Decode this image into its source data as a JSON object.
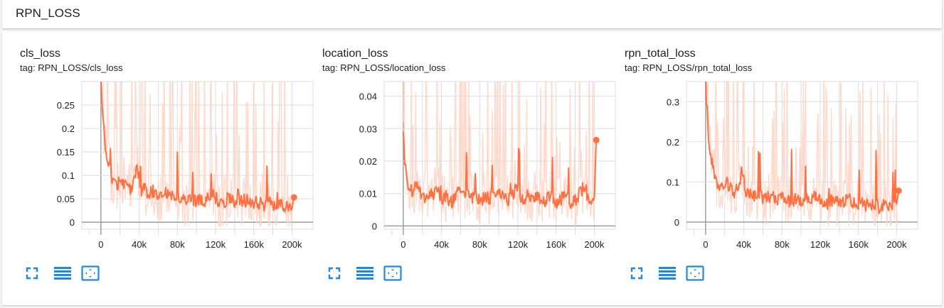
{
  "group": {
    "title": "RPN_LOSS"
  },
  "toolbar": {
    "fullscreen_icon": "fullscreen-icon",
    "log_scale_icon": "log-scale-icon",
    "fit_domain_icon": "fit-domain-icon"
  },
  "colors": {
    "line": "#ff7043",
    "smoothed_bg": "#ffd2c2",
    "accent": "#1e88e5",
    "grid": "#dddddd"
  },
  "charts": [
    {
      "title": "cls_loss",
      "tag": "tag: RPN_LOSS/cls_loss"
    },
    {
      "title": "location_loss",
      "tag": "tag: RPN_LOSS/location_loss"
    },
    {
      "title": "rpn_total_loss",
      "tag": "tag: RPN_LOSS/rpn_total_loss"
    }
  ],
  "chart_data": [
    {
      "type": "line",
      "title": "cls_loss",
      "xlabel": "",
      "ylabel": "",
      "xlim": [
        -20000,
        222000
      ],
      "ylim": [
        -0.015,
        0.3
      ],
      "xticks": [
        0,
        40000,
        80000,
        120000,
        160000,
        200000
      ],
      "xtick_labels": [
        "0",
        "40k",
        "80k",
        "120k",
        "160k",
        "200k"
      ],
      "yticks": [
        0,
        0.05,
        0.1,
        0.15,
        0.2,
        0.25
      ],
      "ytick_labels": [
        "0",
        "0.05",
        "0.1",
        "0.15",
        "0.2",
        "0.25"
      ],
      "grid": true,
      "series": [
        {
          "x": [
            0,
            2000,
            4000,
            6000,
            8000,
            10000,
            14000,
            18000,
            22000,
            26000,
            30000,
            34000,
            38000,
            42000,
            46000,
            50000,
            56000,
            62000,
            68000,
            74000,
            80000,
            86000,
            92000,
            98000,
            104000,
            110000,
            116000,
            122000,
            128000,
            134000,
            140000,
            146000,
            152000,
            158000,
            164000,
            170000,
            176000,
            182000,
            188000,
            194000,
            200000,
            202000
          ],
          "values": [
            0.3,
            0.22,
            0.17,
            0.14,
            0.12,
            0.1,
            0.085,
            0.08,
            0.09,
            0.075,
            0.07,
            0.08,
            0.12,
            0.065,
            0.07,
            0.06,
            0.065,
            0.05,
            0.06,
            0.05,
            0.055,
            0.045,
            0.05,
            0.045,
            0.05,
            0.045,
            0.06,
            0.045,
            0.04,
            0.05,
            0.04,
            0.045,
            0.045,
            0.04,
            0.04,
            0.035,
            0.04,
            0.03,
            0.04,
            0.03,
            0.035,
            0.053
          ]
        }
      ]
    },
    {
      "type": "line",
      "title": "location_loss",
      "xlabel": "",
      "ylabel": "",
      "xlim": [
        -20000,
        222000
      ],
      "ylim": [
        -0.001,
        0.0445
      ],
      "xticks": [
        0,
        40000,
        80000,
        120000,
        160000,
        200000
      ],
      "xtick_labels": [
        "0",
        "40k",
        "80k",
        "120k",
        "160k",
        "200k"
      ],
      "yticks": [
        0,
        0.01,
        0.02,
        0.03,
        0.04
      ],
      "ytick_labels": [
        "0",
        "0.01",
        "0.02",
        "0.03",
        "0.04"
      ],
      "grid": true,
      "series": [
        {
          "x": [
            0,
            3000,
            6000,
            10000,
            15000,
            20000,
            25000,
            30000,
            35000,
            40000,
            45000,
            50000,
            55000,
            60000,
            65000,
            70000,
            75000,
            80000,
            85000,
            90000,
            95000,
            100000,
            105000,
            110000,
            115000,
            120000,
            125000,
            130000,
            135000,
            140000,
            145000,
            150000,
            155000,
            160000,
            165000,
            170000,
            175000,
            180000,
            185000,
            190000,
            195000,
            200000,
            202000
          ],
          "values": [
            0.025,
            0.015,
            0.01,
            0.011,
            0.012,
            0.008,
            0.01,
            0.009,
            0.012,
            0.008,
            0.009,
            0.007,
            0.009,
            0.012,
            0.01,
            0.008,
            0.01,
            0.007,
            0.009,
            0.008,
            0.01,
            0.011,
            0.009,
            0.008,
            0.01,
            0.012,
            0.007,
            0.009,
            0.008,
            0.01,
            0.007,
            0.008,
            0.009,
            0.007,
            0.008,
            0.01,
            0.007,
            0.008,
            0.01,
            0.012,
            0.007,
            0.008,
            0.0265
          ]
        }
      ]
    },
    {
      "type": "line",
      "title": "rpn_total_loss",
      "xlabel": "",
      "ylabel": "",
      "xlim": [
        -20000,
        222000
      ],
      "ylim": [
        -0.018,
        0.35
      ],
      "xticks": [
        0,
        40000,
        80000,
        120000,
        160000,
        200000
      ],
      "xtick_labels": [
        "0",
        "40k",
        "80k",
        "120k",
        "160k",
        "200k"
      ],
      "yticks": [
        0,
        0.1,
        0.2,
        0.3
      ],
      "ytick_labels": [
        "0",
        "0.1",
        "0.2",
        "0.3"
      ],
      "grid": true,
      "series": [
        {
          "x": [
            0,
            2000,
            4000,
            6000,
            8000,
            10000,
            14000,
            18000,
            22000,
            26000,
            30000,
            34000,
            38000,
            42000,
            46000,
            50000,
            56000,
            62000,
            68000,
            74000,
            80000,
            86000,
            92000,
            98000,
            104000,
            110000,
            116000,
            122000,
            128000,
            134000,
            140000,
            146000,
            152000,
            158000,
            164000,
            170000,
            176000,
            182000,
            188000,
            194000,
            200000,
            202000
          ],
          "values": [
            0.35,
            0.25,
            0.19,
            0.15,
            0.13,
            0.11,
            0.09,
            0.085,
            0.095,
            0.08,
            0.075,
            0.085,
            0.13,
            0.07,
            0.075,
            0.065,
            0.07,
            0.055,
            0.065,
            0.055,
            0.06,
            0.05,
            0.055,
            0.05,
            0.055,
            0.05,
            0.065,
            0.05,
            0.045,
            0.055,
            0.045,
            0.05,
            0.05,
            0.045,
            0.045,
            0.04,
            0.045,
            0.035,
            0.045,
            0.035,
            0.04,
            0.078
          ]
        }
      ]
    }
  ]
}
